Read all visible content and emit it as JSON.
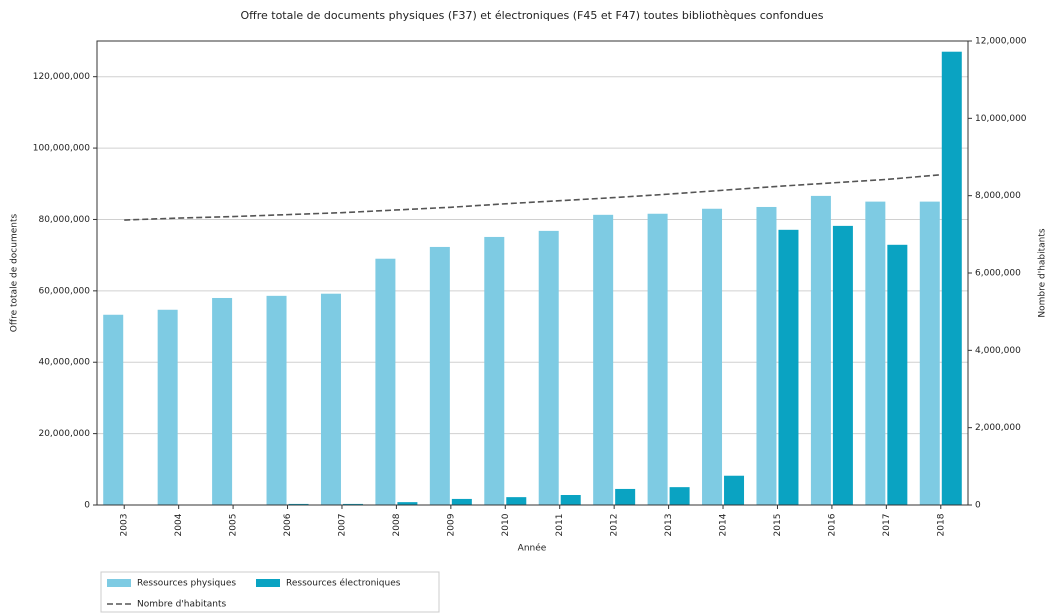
{
  "chart_data": {
    "type": "bar",
    "title": "Offre totale de documents physiques (F37) et électroniques (F45 et F47) toutes bibliothèques confondues",
    "xlabel": "Année",
    "ylabel": "Offre totale de documents",
    "y2label": "Nombre d'habitants",
    "categories": [
      "2003",
      "2004",
      "2005",
      "2006",
      "2007",
      "2008",
      "2009",
      "2010",
      "2011",
      "2012",
      "2013",
      "2014",
      "2015",
      "2016",
      "2017",
      "2018"
    ],
    "series": [
      {
        "name": "Ressources physiques",
        "type": "bar",
        "color": "#7ecbe3",
        "values": [
          53300000,
          54700000,
          58000000,
          58600000,
          59200000,
          69000000,
          72300000,
          75100000,
          76800000,
          81300000,
          81600000,
          83000000,
          83500000,
          86600000,
          85000000,
          85000000
        ]
      },
      {
        "name": "Ressources électroniques",
        "type": "bar",
        "color": "#0aa3c2",
        "values": [
          0,
          0,
          0,
          300000,
          300000,
          800000,
          1700000,
          2200000,
          2800000,
          4500000,
          5000000,
          8200000,
          77100000,
          78200000,
          72900000,
          127000000
        ]
      },
      {
        "name": "Nombre d'habitants",
        "type": "line",
        "axis": "y2",
        "color": "#555555",
        "dashed": true,
        "values": [
          7370000,
          7420000,
          7460000,
          7510000,
          7560000,
          7630000,
          7700000,
          7790000,
          7870000,
          7950000,
          8040000,
          8140000,
          8240000,
          8330000,
          8420000,
          8540000
        ]
      }
    ],
    "ylim": [
      0,
      130000000
    ],
    "yticks": [
      0,
      {
        "value": 20000000,
        "label": "20,000,000"
      },
      {
        "value": 40000000,
        "label": "40,000,000"
      },
      {
        "value": 60000000,
        "label": "60,000,000"
      },
      {
        "value": 80000000,
        "label": "80,000,000"
      },
      {
        "value": 100000000,
        "label": "100,000,000"
      },
      {
        "value": 120000000,
        "label": "120,000,000"
      }
    ],
    "y2lim": [
      0,
      12000000
    ],
    "y2ticks": [
      0,
      {
        "value": 2000000,
        "label": "2,000,000"
      },
      {
        "value": 4000000,
        "label": "4,000,000"
      },
      {
        "value": 6000000,
        "label": "6,000,000"
      },
      {
        "value": 8000000,
        "label": "8,000,000"
      },
      {
        "value": 10000000,
        "label": "10,000,000"
      },
      {
        "value": 12000000,
        "label": "12,000,000"
      }
    ],
    "grid": true
  }
}
